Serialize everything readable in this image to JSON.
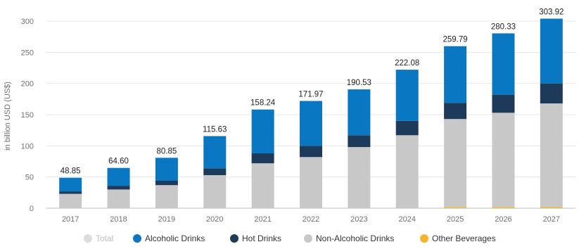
{
  "chart_data": {
    "type": "bar",
    "stacked": true,
    "ylabel": "in billion USD (US$)",
    "xlabel": "",
    "ylim": [
      0,
      300
    ],
    "yticks": [
      0,
      50,
      100,
      150,
      200,
      250,
      300
    ],
    "grid": true,
    "legend_position": "bottom",
    "categories": [
      "2017",
      "2018",
      "2019",
      "2020",
      "2021",
      "2022",
      "2023",
      "2024",
      "2025",
      "2026",
      "2027"
    ],
    "totals": [
      "48.85",
      "64.60",
      "80.85",
      "115.63",
      "158.24",
      "171.97",
      "190.53",
      "222.08",
      "259.79",
      "280.33",
      "303.92"
    ],
    "series": [
      {
        "name": "Other Beverages",
        "color": "#f5b42a",
        "values": [
          0.1,
          0.1,
          0.1,
          0.1,
          0.1,
          0.1,
          0.1,
          0.2,
          1.5,
          1.5,
          1.6
        ]
      },
      {
        "name": "Non-Alcoholic Drinks",
        "color": "#c8c8c8",
        "values": [
          22.9,
          29.9,
          36.9,
          52.9,
          71.9,
          81.9,
          97.9,
          116.8,
          141.5,
          151.5,
          166.4
        ]
      },
      {
        "name": "Hot Drinks",
        "color": "#1e3a5a",
        "values": [
          4,
          6,
          7,
          11,
          16,
          18,
          19,
          23,
          26,
          29,
          32
        ]
      },
      {
        "name": "Alcoholic Drinks",
        "color": "#0a77c2",
        "values": [
          21.85,
          28.6,
          36.85,
          51.63,
          70.24,
          71.97,
          73.53,
          82.08,
          90.79,
          98.33,
          103.92
        ]
      }
    ]
  },
  "legend": [
    {
      "label": "Total",
      "color": "#dcdcdc",
      "active": false
    },
    {
      "label": "Alcoholic Drinks",
      "color": "#0a77c2",
      "active": true
    },
    {
      "label": "Hot Drinks",
      "color": "#1e3a5a",
      "active": true
    },
    {
      "label": "Non-Alcoholic Drinks",
      "color": "#c8c8c8",
      "active": true
    },
    {
      "label": "Other Beverages",
      "color": "#f5b42a",
      "active": true
    }
  ]
}
